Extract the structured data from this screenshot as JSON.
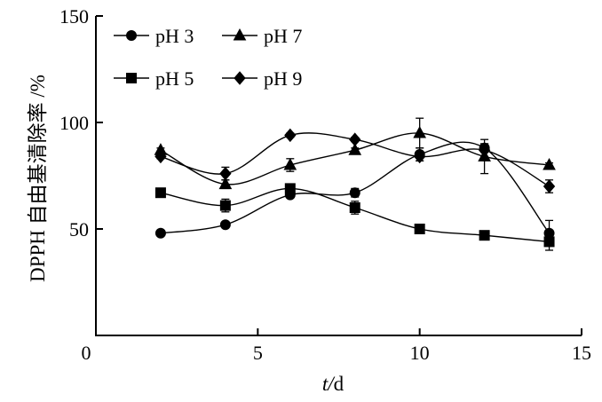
{
  "chart_data": {
    "type": "line",
    "xlabel": "t/d",
    "ylabel": "DPPH 自由基清除率 /%",
    "xlim": [
      0,
      15
    ],
    "ylim": [
      0,
      150
    ],
    "xticks": [
      0,
      5,
      10,
      15
    ],
    "yticks": [
      50,
      100,
      150
    ],
    "grid": false,
    "legend": {
      "placement": "top-left",
      "columns": 2,
      "fill": "column-major"
    },
    "x": [
      2,
      4,
      6,
      8,
      10,
      12,
      14
    ],
    "series": [
      {
        "name": "pH 3",
        "marker": "circle",
        "values": [
          48,
          52,
          66,
          67,
          85,
          88,
          48
        ],
        "error": [
          0.5,
          1,
          1,
          2,
          3,
          2,
          6
        ]
      },
      {
        "name": "pH 5",
        "marker": "square",
        "values": [
          67,
          61,
          69,
          60,
          50,
          47,
          44
        ],
        "error": [
          1,
          3,
          1.5,
          3,
          2,
          1,
          4
        ]
      },
      {
        "name": "pH 7",
        "marker": "triangle",
        "values": [
          87,
          71,
          80,
          87,
          95,
          84,
          80
        ],
        "error": [
          1,
          2,
          3,
          1,
          7,
          8,
          1
        ]
      },
      {
        "name": "pH 9",
        "marker": "diamond",
        "values": [
          84,
          76,
          94,
          92,
          84,
          87,
          70
        ],
        "error": [
          1,
          3,
          1,
          1,
          2,
          3,
          3
        ]
      }
    ],
    "colors": {
      "line": "#000000",
      "background": "#ffffff"
    }
  }
}
